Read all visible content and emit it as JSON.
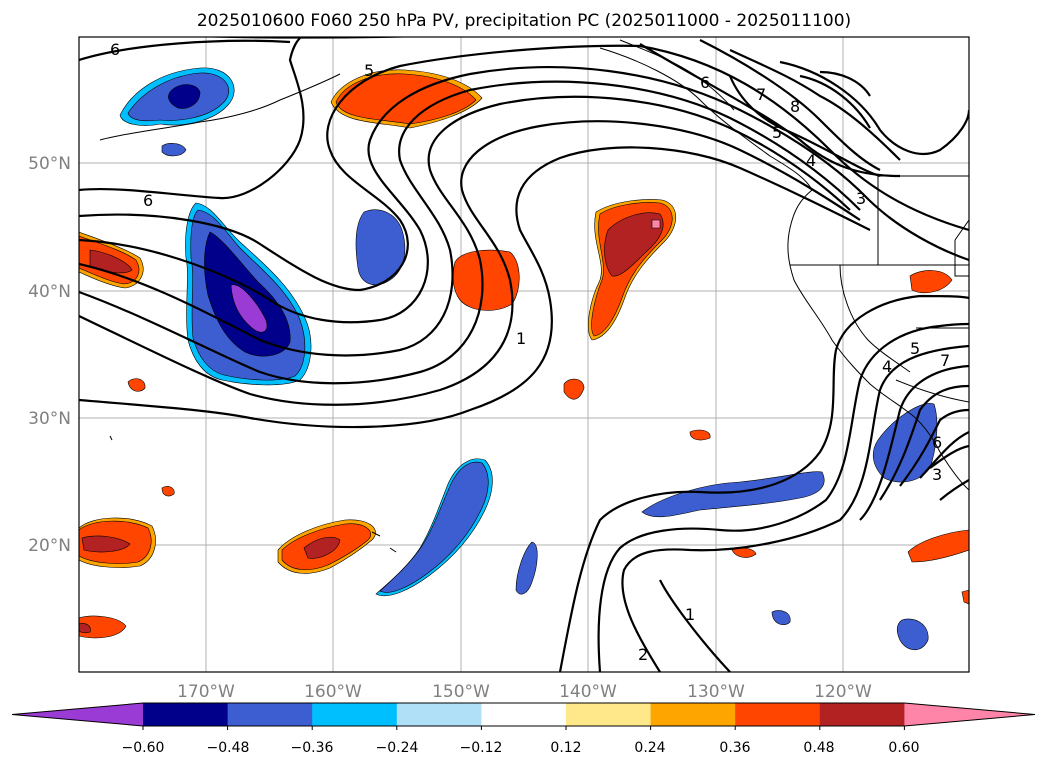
{
  "title": "2025010600 F060 250 hPa PV, precipitation PC (2025011000 - 2025011100)",
  "map": {
    "lon_ticks": [
      "170°W",
      "160°W",
      "150°W",
      "140°W",
      "130°W",
      "120°W"
    ],
    "lat_ticks": [
      "50°N",
      "40°N",
      "30°N",
      "20°N"
    ],
    "gridlines": true
  },
  "pv_contour_labels": [
    "6",
    "6",
    "6",
    "5",
    "7",
    "8",
    "5",
    "4",
    "3",
    "1",
    "1",
    "2",
    "5",
    "4",
    "7",
    "6",
    "3"
  ],
  "colorbar": {
    "ticks": [
      "−0.60",
      "−0.48",
      "−0.36",
      "−0.24",
      "−0.12",
      "0.12",
      "0.24",
      "0.36",
      "0.48",
      "0.60"
    ],
    "colors": [
      "#9b3bd6",
      "#00008b",
      "#3d5ed0",
      "#00bfff",
      "#b0e0f8",
      "#ffffff",
      "#ffe88a",
      "#ffa500",
      "#ff4500",
      "#b22222",
      "#ff85a8"
    ],
    "extend": "both"
  },
  "colors": {
    "neg_strong": "#00008b",
    "neg_mid": "#3d5ed0",
    "neg_light": "#00bfff",
    "pos_mid": "#ff4500",
    "pos_strong": "#b22222",
    "pos_max": "#ff85a8",
    "extreme_neg": "#9b3bd6"
  }
}
